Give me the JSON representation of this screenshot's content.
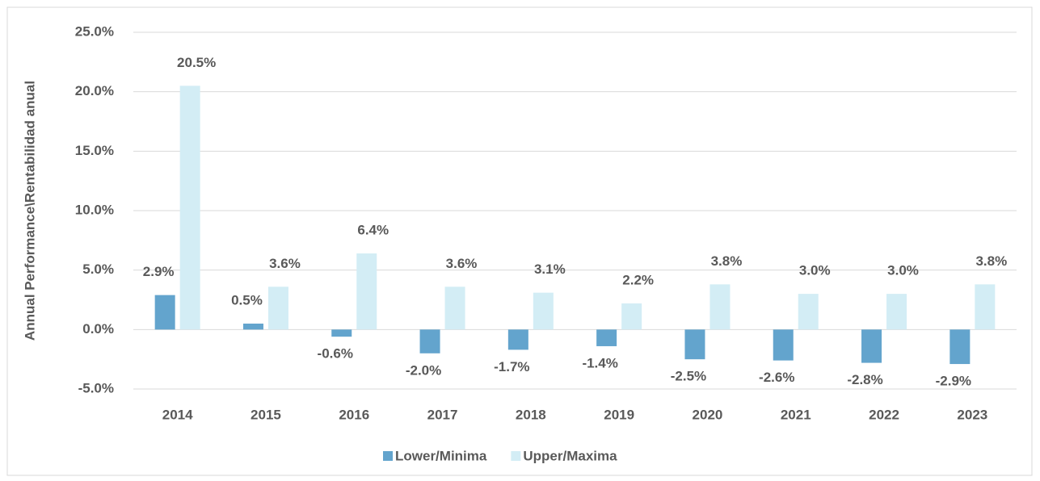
{
  "chart_data": {
    "type": "bar",
    "y_label": "Annual Performance\\Rentabilidad anual",
    "categories": [
      "2014",
      "2015",
      "2016",
      "2017",
      "2018",
      "2019",
      "2020",
      "2021",
      "2022",
      "2023"
    ],
    "series": [
      {
        "name": "Lower/Minima",
        "color": "#63a4cd",
        "values": [
          2.9,
          0.5,
          -0.6,
          -2.0,
          -1.7,
          -1.4,
          -2.5,
          -2.6,
          -2.8,
          -2.9
        ],
        "value_labels": [
          "2.9%",
          "0.5%",
          "-0.6%",
          "-2.0%",
          "-1.7%",
          "-1.4%",
          "-2.5%",
          "-2.6%",
          "-2.8%",
          "-2.9%"
        ]
      },
      {
        "name": "Upper/Maxima",
        "color": "#d3edf5",
        "values": [
          20.5,
          3.6,
          6.4,
          3.6,
          3.1,
          2.2,
          3.8,
          3.0,
          3.0,
          3.8
        ],
        "value_labels": [
          "20.5%",
          "3.6%",
          "6.4%",
          "3.6%",
          "3.1%",
          "2.2%",
          "3.8%",
          "3.0%",
          "3.0%",
          "3.8%"
        ]
      }
    ],
    "ylim": [
      -5,
      25
    ],
    "yticks": [
      {
        "value": -5,
        "label": "-5.0%"
      },
      {
        "value": 0,
        "label": "0.0%"
      },
      {
        "value": 5,
        "label": "5.0%"
      },
      {
        "value": 10,
        "label": "10.0%"
      },
      {
        "value": 15,
        "label": "15.0%"
      },
      {
        "value": 20,
        "label": "20.0%"
      },
      {
        "value": 25,
        "label": "25.0%"
      }
    ],
    "grid": true,
    "legend": "bottom"
  }
}
